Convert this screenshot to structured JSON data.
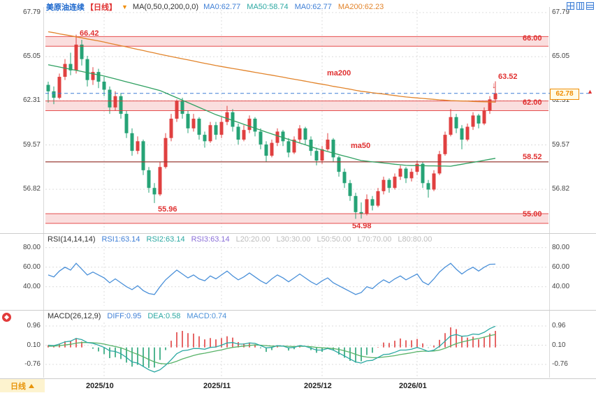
{
  "colors": {
    "up": "#e04040",
    "down": "#26a376",
    "ma50": "#2fa061",
    "ma200": "#e2842b",
    "rsi": "#4a90d9",
    "diff": "#2ba8a2",
    "dea": "#58b368",
    "band": "#e03131",
    "price_line": "#3f7fd6",
    "price_tag": "#f08c00"
  },
  "icons": {
    "dropdown": "▼",
    "arrow_down": "↓",
    "triangle_up": "▲"
  },
  "header": {
    "title": "美原油连续",
    "period_tag": "【日线】",
    "ma_formula": "MA(0,50,0,200,0,0)",
    "ma_values": [
      {
        "text": "MA0:62.77",
        "color": "#3f7fd6"
      },
      {
        "text": "MA50:58.74",
        "color": "#2ba8a2"
      },
      {
        "text": "MA0:62.77",
        "color": "#3f7fd6"
      },
      {
        "text": "MA200:62.23",
        "color": "#e2842b"
      }
    ]
  },
  "main": {
    "ticks": [
      67.79,
      65.05,
      62.31,
      59.57,
      56.82
    ]
  },
  "rsi": {
    "formula": "RSI(14,14,14)",
    "ticks": [
      80,
      60,
      40
    ],
    "legend": [
      {
        "text": "RSI1:63.14",
        "color": "#3f7fd6"
      },
      {
        "text": "RSI2:63.14",
        "color": "#2ba8a2"
      },
      {
        "text": "RSI3:63.14",
        "color": "#8a6fd8"
      },
      {
        "text": "L20:20.00",
        "color": "#bbbbbb"
      },
      {
        "text": "L30:30.00",
        "color": "#bbbbbb"
      },
      {
        "text": "L50:50.00",
        "color": "#bbbbbb"
      },
      {
        "text": "L70:70.00",
        "color": "#bbbbbb"
      },
      {
        "text": "L80:80.00",
        "color": "#bbbbbb"
      }
    ]
  },
  "macd": {
    "formula": "MACD(26,12,9)",
    "ticks": [
      0.96,
      0.1,
      -0.76
    ],
    "legend": [
      {
        "text": "DIFF:0.95",
        "color": "#3f7fd6"
      },
      {
        "text": "DEA:0.58",
        "color": "#2ba8a2"
      },
      {
        "text": "MACD:0.74",
        "color": "#4a90d9"
      }
    ]
  },
  "xaxis": {
    "period_label": "日线",
    "dates": [
      "2025/10",
      "2025/11",
      "2025/12",
      "2026/01"
    ]
  },
  "chart_data": {
    "type": "candlestick",
    "symbol": "美原油连续",
    "period": "日线",
    "ylim_main": [
      54.2,
      68.1
    ],
    "ylim_rsi": [
      20,
      82
    ],
    "ylim_macd": [
      -1.32,
      1.12
    ],
    "month_tick_indices": [
      10,
      31,
      49,
      66
    ],
    "bands": [
      {
        "level": 66.0,
        "half": 0.3
      },
      {
        "level": 62.0,
        "half": 0.3
      },
      {
        "level": 55.0,
        "half": 0.3
      }
    ],
    "hline": 58.52,
    "dashed_price": 62.77,
    "last_price_label": "62.78",
    "annotations": {
      "swing_high_1": "66.42",
      "swing_high_2": "63.52",
      "swing_low_1": "55.96",
      "swing_low_2": "54.98",
      "ma200_label": "ma200",
      "ma50_label": "ma50"
    },
    "level_labels": {
      "r66": "66.00",
      "r62": "62.00",
      "s5852": "58.52",
      "s55": "55.00"
    },
    "ohlc_format": [
      "open",
      "high",
      "low",
      "close"
    ],
    "candles": [
      [
        63.3,
        63.5,
        62.2,
        62.9
      ],
      [
        62.9,
        63.2,
        62.1,
        62.5
      ],
      [
        62.5,
        64.0,
        62.4,
        63.8
      ],
      [
        63.8,
        64.9,
        63.6,
        64.6
      ],
      [
        64.6,
        65.3,
        63.9,
        64.2
      ],
      [
        64.2,
        66.42,
        64.0,
        65.8
      ],
      [
        65.8,
        66.1,
        64.5,
        64.9
      ],
      [
        64.9,
        65.1,
        63.2,
        63.6
      ],
      [
        63.6,
        64.4,
        63.3,
        64.1
      ],
      [
        64.1,
        64.3,
        63.1,
        63.5
      ],
      [
        63.5,
        63.8,
        62.6,
        63.0
      ],
      [
        63.0,
        63.2,
        61.5,
        61.9
      ],
      [
        61.9,
        62.9,
        61.7,
        62.6
      ],
      [
        62.6,
        62.8,
        61.2,
        61.5
      ],
      [
        61.5,
        61.7,
        60.0,
        60.3
      ],
      [
        60.3,
        60.6,
        58.9,
        59.2
      ],
      [
        59.2,
        60.1,
        59.0,
        59.8
      ],
      [
        59.8,
        59.9,
        57.7,
        58.0
      ],
      [
        58.0,
        58.2,
        56.6,
        56.9
      ],
      [
        56.9,
        57.2,
        55.96,
        56.5
      ],
      [
        56.5,
        58.5,
        56.4,
        58.2
      ],
      [
        58.2,
        60.3,
        58.1,
        60.0
      ],
      [
        60.0,
        61.5,
        59.8,
        61.2
      ],
      [
        61.2,
        62.4,
        61.0,
        62.3
      ],
      [
        62.3,
        62.5,
        61.2,
        61.5
      ],
      [
        61.5,
        61.7,
        60.3,
        60.6
      ],
      [
        60.6,
        61.5,
        60.4,
        61.2
      ],
      [
        61.2,
        61.3,
        59.9,
        60.2
      ],
      [
        60.2,
        60.4,
        59.4,
        59.8
      ],
      [
        59.8,
        61.0,
        59.7,
        60.8
      ],
      [
        60.8,
        61.0,
        59.9,
        60.2
      ],
      [
        60.2,
        61.3,
        60.0,
        61.0
      ],
      [
        61.0,
        62.0,
        60.8,
        61.6
      ],
      [
        61.6,
        61.8,
        60.4,
        60.7
      ],
      [
        60.7,
        60.9,
        59.6,
        59.9
      ],
      [
        59.9,
        60.8,
        59.8,
        60.5
      ],
      [
        60.5,
        61.4,
        60.3,
        61.2
      ],
      [
        61.2,
        61.3,
        60.1,
        60.4
      ],
      [
        60.4,
        60.6,
        59.3,
        59.6
      ],
      [
        59.6,
        59.8,
        58.5,
        58.9
      ],
      [
        58.9,
        59.9,
        58.8,
        59.7
      ],
      [
        59.7,
        60.6,
        59.5,
        60.4
      ],
      [
        60.4,
        60.5,
        59.5,
        59.8
      ],
      [
        59.8,
        60.0,
        58.8,
        59.1
      ],
      [
        59.1,
        60.1,
        59.0,
        59.9
      ],
      [
        59.9,
        60.8,
        59.7,
        60.6
      ],
      [
        60.6,
        60.7,
        59.6,
        59.9
      ],
      [
        59.9,
        60.1,
        58.9,
        59.2
      ],
      [
        59.2,
        59.4,
        58.3,
        58.6
      ],
      [
        58.6,
        59.5,
        58.4,
        59.3
      ],
      [
        59.3,
        60.3,
        59.2,
        59.9
      ],
      [
        59.9,
        60.0,
        58.5,
        58.8
      ],
      [
        58.8,
        58.9,
        57.6,
        57.9
      ],
      [
        57.9,
        58.1,
        56.9,
        57.2
      ],
      [
        57.2,
        57.4,
        56.1,
        56.4
      ],
      [
        56.4,
        56.6,
        54.98,
        55.4
      ],
      [
        55.4,
        56.0,
        55.0,
        55.3
      ],
      [
        55.3,
        56.5,
        55.2,
        56.2
      ],
      [
        56.2,
        56.4,
        55.5,
        55.8
      ],
      [
        55.8,
        56.9,
        55.7,
        56.7
      ],
      [
        56.7,
        57.6,
        56.5,
        57.4
      ],
      [
        57.4,
        57.5,
        56.6,
        56.9
      ],
      [
        56.9,
        57.8,
        56.8,
        57.6
      ],
      [
        57.6,
        58.3,
        57.4,
        58.1
      ],
      [
        58.1,
        58.2,
        57.2,
        57.5
      ],
      [
        57.5,
        58.1,
        57.3,
        57.9
      ],
      [
        57.9,
        58.6,
        57.7,
        58.4
      ],
      [
        58.4,
        58.5,
        56.9,
        57.2
      ],
      [
        57.2,
        57.4,
        56.3,
        56.8
      ],
      [
        56.8,
        58.0,
        56.7,
        57.8
      ],
      [
        57.8,
        59.2,
        57.7,
        59.0
      ],
      [
        59.0,
        60.4,
        58.9,
        60.2
      ],
      [
        60.2,
        61.8,
        60.1,
        61.3
      ],
      [
        61.3,
        61.5,
        60.3,
        60.6
      ],
      [
        60.6,
        60.8,
        59.3,
        59.9
      ],
      [
        59.9,
        60.9,
        59.8,
        60.7
      ],
      [
        60.7,
        61.6,
        60.5,
        61.4
      ],
      [
        61.4,
        61.5,
        60.6,
        60.9
      ],
      [
        60.9,
        61.9,
        60.8,
        61.7
      ],
      [
        61.7,
        62.6,
        61.5,
        62.4
      ],
      [
        62.4,
        63.52,
        62.2,
        62.78
      ]
    ],
    "ma50": [
      64.55,
      64.48,
      64.41,
      64.34,
      64.27,
      64.2,
      64.13,
      64.06,
      63.99,
      63.92,
      63.85,
      63.76,
      63.67,
      63.58,
      63.49,
      63.4,
      63.31,
      63.22,
      63.13,
      63.04,
      62.95,
      62.8,
      62.65,
      62.5,
      62.35,
      62.2,
      62.05,
      61.9,
      61.75,
      61.6,
      61.45,
      61.33,
      61.21,
      61.09,
      60.97,
      60.85,
      60.73,
      60.61,
      60.49,
      60.37,
      60.25,
      60.14,
      60.03,
      59.91,
      59.8,
      59.69,
      59.58,
      59.46,
      59.35,
      59.26,
      59.16,
      59.07,
      58.97,
      58.88,
      58.79,
      58.69,
      58.6,
      58.56,
      58.52,
      58.49,
      58.45,
      58.41,
      58.37,
      58.34,
      58.3,
      58.29,
      58.29,
      58.28,
      58.27,
      58.27,
      58.26,
      58.26,
      58.25,
      58.31,
      58.37,
      58.43,
      58.49,
      58.55,
      58.62,
      58.68,
      58.74
    ],
    "ma200": [
      66.6,
      66.54,
      66.47,
      66.41,
      66.35,
      66.28,
      66.22,
      66.15,
      66.09,
      66.03,
      65.96,
      65.88,
      65.81,
      65.73,
      65.66,
      65.58,
      65.5,
      65.43,
      65.35,
      65.28,
      65.2,
      65.13,
      65.06,
      64.99,
      64.92,
      64.85,
      64.78,
      64.71,
      64.64,
      64.57,
      64.5,
      64.44,
      64.38,
      64.32,
      64.26,
      64.2,
      64.14,
      64.08,
      64.02,
      63.96,
      63.9,
      63.84,
      63.78,
      63.71,
      63.65,
      63.59,
      63.53,
      63.46,
      63.4,
      63.34,
      63.28,
      63.21,
      63.15,
      63.09,
      63.03,
      62.96,
      62.9,
      62.86,
      62.81,
      62.77,
      62.73,
      62.68,
      62.64,
      62.59,
      62.55,
      62.52,
      62.49,
      62.46,
      62.43,
      62.4,
      62.37,
      62.35,
      62.32,
      62.31,
      62.3,
      62.29,
      62.27,
      62.26,
      62.25,
      62.24,
      62.23
    ],
    "rsi": [
      52,
      50,
      56,
      60,
      57,
      64,
      58,
      52,
      55,
      52,
      49,
      44,
      48,
      44,
      40,
      37,
      41,
      36,
      33,
      32,
      40,
      47,
      52,
      57,
      53,
      49,
      52,
      48,
      46,
      51,
      48,
      52,
      56,
      51,
      47,
      50,
      54,
      50,
      46,
      43,
      48,
      52,
      49,
      45,
      49,
      53,
      49,
      45,
      42,
      46,
      49,
      44,
      41,
      38,
      35,
      32,
      34,
      40,
      38,
      43,
      47,
      44,
      48,
      51,
      47,
      50,
      53,
      45,
      42,
      48,
      55,
      60,
      64,
      58,
      53,
      57,
      60,
      56,
      60,
      63,
      63.14
    ],
    "macd_diff": [
      0.1,
      0.08,
      0.15,
      0.25,
      0.28,
      0.4,
      0.35,
      0.22,
      0.18,
      0.1,
      0.0,
      -0.15,
      -0.18,
      -0.28,
      -0.45,
      -0.65,
      -0.7,
      -0.85,
      -1.0,
      -1.1,
      -1.0,
      -0.8,
      -0.55,
      -0.28,
      -0.15,
      -0.12,
      -0.05,
      -0.05,
      -0.08,
      0.0,
      0.02,
      0.1,
      0.2,
      0.22,
      0.15,
      0.15,
      0.2,
      0.18,
      0.08,
      -0.02,
      0.0,
      0.08,
      0.06,
      -0.02,
      0.0,
      0.08,
      0.05,
      -0.03,
      -0.12,
      -0.12,
      -0.05,
      -0.12,
      -0.25,
      -0.38,
      -0.52,
      -0.65,
      -0.7,
      -0.6,
      -0.58,
      -0.45,
      -0.32,
      -0.3,
      -0.22,
      -0.12,
      -0.12,
      -0.08,
      0.0,
      -0.08,
      -0.18,
      -0.12,
      0.05,
      0.28,
      0.52,
      0.58,
      0.5,
      0.52,
      0.6,
      0.58,
      0.68,
      0.84,
      0.95
    ],
    "macd_dea": [
      0.05,
      0.06,
      0.08,
      0.11,
      0.14,
      0.19,
      0.22,
      0.22,
      0.21,
      0.19,
      0.15,
      0.09,
      0.04,
      -0.02,
      -0.11,
      -0.22,
      -0.31,
      -0.42,
      -0.54,
      -0.65,
      -0.72,
      -0.74,
      -0.7,
      -0.62,
      -0.52,
      -0.44,
      -0.36,
      -0.3,
      -0.26,
      -0.21,
      -0.16,
      -0.11,
      -0.05,
      0.0,
      0.03,
      0.06,
      0.09,
      0.11,
      0.1,
      0.08,
      0.06,
      0.06,
      0.06,
      0.05,
      0.04,
      0.05,
      0.05,
      0.03,
      0.0,
      -0.02,
      -0.03,
      -0.05,
      -0.09,
      -0.15,
      -0.22,
      -0.31,
      -0.39,
      -0.43,
      -0.46,
      -0.46,
      -0.43,
      -0.4,
      -0.37,
      -0.32,
      -0.28,
      -0.24,
      -0.19,
      -0.17,
      -0.17,
      -0.16,
      -0.12,
      -0.04,
      0.07,
      0.17,
      0.24,
      0.3,
      0.36,
      0.4,
      0.46,
      0.53,
      0.58
    ]
  }
}
